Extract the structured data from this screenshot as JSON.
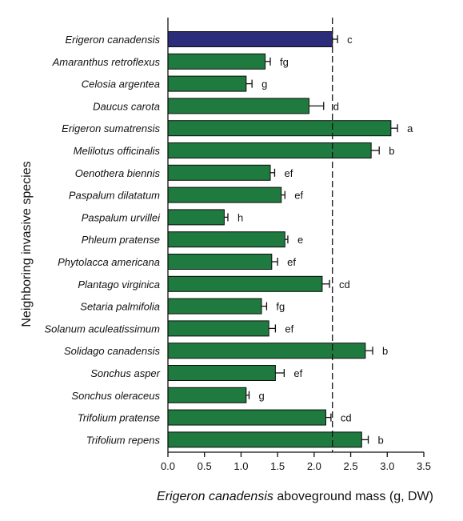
{
  "chart_data": {
    "type": "bar",
    "orientation": "horizontal",
    "xlabel_italic": "Erigeron canadensis",
    "xlabel_rest": " aboveground mass (g, DW)",
    "ylabel": "Neighboring invasive species",
    "xlim": [
      0,
      3.5
    ],
    "xticks": [
      "0.0",
      "0.5",
      "1.0",
      "1.5",
      "2.0",
      "2.5",
      "3.0",
      "3.5"
    ],
    "reference_line": 2.25,
    "grid": false,
    "colors": {
      "highlight": "#2b2d7a",
      "bar": "#1f7a3f",
      "axis": "#111111"
    },
    "categories": [
      "Erigeron canadensis",
      "Amaranthus retroflexus",
      "Celosia argentea",
      "Daucus carota",
      "Erigeron sumatrensis",
      "Melilotus officinalis",
      "Oenothera biennis",
      "Paspalum dilatatum",
      "Paspalum urvillei",
      "Phleum pratense",
      "Phytolacca americana",
      "Plantago virginica",
      "Setaria palmifolia",
      "Solanum aculeatissimum",
      "Solidago canadensis",
      "Sonchus asper",
      "Sonchus oleraceus",
      "Trifolium pratense",
      "Trifolium repens"
    ],
    "values": [
      2.25,
      1.33,
      1.07,
      1.93,
      3.05,
      2.78,
      1.4,
      1.55,
      0.77,
      1.6,
      1.42,
      2.11,
      1.28,
      1.38,
      2.7,
      1.47,
      1.07,
      2.16,
      2.65
    ],
    "errors": [
      0.07,
      0.07,
      0.08,
      0.2,
      0.09,
      0.11,
      0.06,
      0.05,
      0.05,
      0.04,
      0.08,
      0.1,
      0.07,
      0.09,
      0.1,
      0.12,
      0.04,
      0.07,
      0.09
    ],
    "letters": [
      "c",
      "fg",
      "g",
      "d",
      "a",
      "b",
      "ef",
      "ef",
      "h",
      "e",
      "ef",
      "cd",
      "fg",
      "ef",
      "b",
      "ef",
      "g",
      "cd",
      "b"
    ],
    "highlight_index": 0
  }
}
